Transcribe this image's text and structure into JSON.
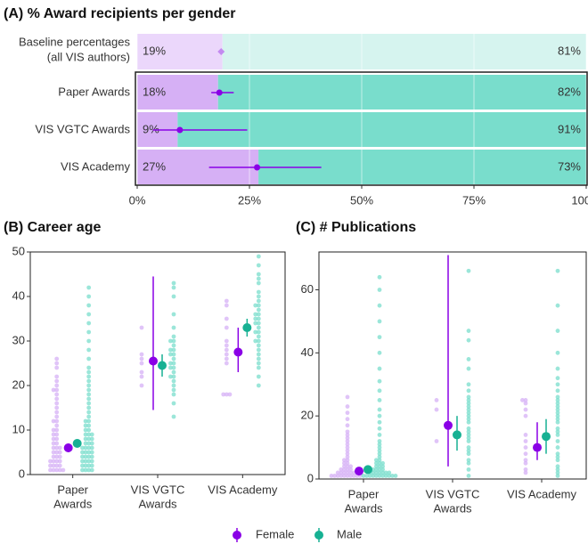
{
  "chart_data": [
    {
      "type": "stacked_bar_h",
      "title": "(A) % Award recipients per gender",
      "baseline": {
        "label": [
          "Baseline percentages",
          "(all VIS authors)"
        ],
        "values": [
          19,
          81
        ],
        "value_labels": [
          "19%",
          "81%"
        ],
        "mean": 18.7
      },
      "categories": [
        [
          "Paper Awards"
        ],
        [
          "VIS VGTC Awards"
        ],
        [
          "VIS Academy"
        ]
      ],
      "series": [
        {
          "values": [
            18,
            9,
            27
          ],
          "value_labels": [
            "18%",
            "9%",
            "27%"
          ],
          "mean": [
            18.3,
            9.5,
            26.7
          ],
          "ci_low": [
            16.5,
            3.5,
            16
          ],
          "ci_high": [
            21.5,
            24.5,
            41
          ]
        },
        {
          "values": [
            82,
            91,
            73
          ],
          "value_labels": [
            "82%",
            "91%",
            "73%"
          ]
        }
      ],
      "xlim": [
        0,
        100
      ],
      "xticks": [
        {
          "value": 0,
          "label": "0%"
        },
        {
          "value": 25,
          "label": "25%"
        },
        {
          "value": 50,
          "label": "50%"
        },
        {
          "value": 75,
          "label": "75%"
        },
        {
          "value": 100,
          "label": "100%"
        }
      ],
      "grid": true
    },
    {
      "type": "swarm",
      "title": "(B) Career age",
      "categories": [
        [
          "Paper",
          "Awards"
        ],
        [
          "VIS VGTC",
          "Awards"
        ],
        [
          "VIS Academy"
        ]
      ],
      "series": [
        {
          "points": [
            [
              1,
              1,
              1,
              1,
              1,
              2,
              2,
              2,
              2,
              3,
              3,
              3,
              3,
              4,
              4,
              4,
              5,
              5,
              5,
              6,
              6,
              6,
              7,
              7,
              8,
              8,
              9,
              9,
              10,
              10,
              11,
              12,
              12,
              13,
              14,
              15,
              16,
              17,
              18,
              19,
              19,
              20,
              21,
              22,
              24,
              25,
              26
            ],
            [
              23,
              22,
              25,
              33,
              26,
              27,
              20
            ],
            [
              39,
              38,
              35,
              33,
              30,
              29,
              28,
              27,
              26,
              25,
              18,
              18,
              18
            ]
          ],
          "mean": [
            6,
            25.5,
            27.5
          ],
          "ci_low": [
            5,
            14.5,
            23
          ],
          "ci_high": [
            7,
            44.5,
            33
          ]
        },
        {
          "points": [
            [
              1,
              1,
              1,
              1,
              2,
              2,
              2,
              2,
              3,
              3,
              3,
              3,
              4,
              4,
              4,
              4,
              5,
              5,
              5,
              5,
              6,
              6,
              6,
              6,
              7,
              7,
              7,
              8,
              8,
              8,
              9,
              9,
              9,
              10,
              10,
              11,
              11,
              12,
              12,
              13,
              14,
              15,
              16,
              17,
              18,
              19,
              20,
              21,
              22,
              23,
              24,
              26,
              28,
              30,
              32,
              34,
              36,
              38,
              40,
              42
            ],
            [
              13,
              16,
              18,
              19,
              20,
              21,
              22,
              22,
              23,
              24,
              24,
              25,
              25,
              26,
              27,
              27,
              28,
              28,
              29,
              30,
              30,
              31,
              33,
              36,
              40,
              42,
              43
            ],
            [
              20,
              22,
              24,
              25,
              26,
              27,
              28,
              29,
              30,
              30,
              31,
              32,
              32,
              33,
              34,
              34,
              35,
              35,
              36,
              36,
              37,
              38,
              38,
              39,
              40,
              41,
              43,
              44,
              45,
              47,
              49
            ]
          ],
          "mean": [
            7,
            24.5,
            33
          ],
          "ci_low": [
            6.5,
            22,
            31
          ],
          "ci_high": [
            7.5,
            27,
            35
          ]
        }
      ],
      "ylim": [
        0,
        50
      ],
      "yticks": [
        0,
        10,
        20,
        30,
        40,
        50
      ]
    },
    {
      "type": "swarm",
      "title": "(C) # Publications",
      "categories": [
        [
          "Paper",
          "Awards"
        ],
        [
          "VIS VGTC",
          "Awards"
        ],
        [
          "VIS Academy"
        ]
      ],
      "series": [
        {
          "points": [
            [
              1,
              1,
              1,
              1,
              1,
              1,
              1,
              1,
              1,
              1,
              2,
              2,
              2,
              2,
              2,
              2,
              3,
              3,
              3,
              3,
              4,
              4,
              4,
              5,
              5,
              6,
              6,
              7,
              8,
              9,
              10,
              11,
              12,
              13,
              14,
              15,
              17,
              19,
              21,
              23,
              26
            ],
            [
              22,
              25,
              12
            ],
            [
              2,
              3,
              5,
              6,
              8,
              10,
              12,
              14,
              20,
              22,
              24,
              25,
              25
            ]
          ],
          "mean": [
            2.5,
            17,
            10
          ],
          "ci_low": [
            2,
            4,
            6
          ],
          "ci_high": [
            3,
            71,
            18
          ]
        },
        {
          "points": [
            [
              1,
              1,
              1,
              1,
              1,
              1,
              1,
              1,
              1,
              1,
              1,
              2,
              2,
              2,
              2,
              2,
              2,
              2,
              3,
              3,
              3,
              3,
              4,
              4,
              4,
              5,
              5,
              5,
              6,
              6,
              7,
              8,
              9,
              10,
              11,
              12,
              14,
              16,
              18,
              20,
              22,
              25,
              28,
              31,
              35,
              40,
              45,
              50,
              55,
              60,
              64
            ],
            [
              1,
              3,
              5,
              6,
              8,
              9,
              10,
              12,
              13,
              14,
              15,
              16,
              18,
              19,
              20,
              21,
              22,
              23,
              24,
              25,
              26,
              28,
              30,
              35,
              38,
              44,
              47,
              66
            ],
            [
              1,
              2,
              3,
              4,
              6,
              7,
              8,
              10,
              12,
              14,
              15,
              16,
              18,
              19,
              20,
              21,
              22,
              23,
              24,
              25,
              26,
              28,
              30,
              32,
              35,
              40,
              47,
              55,
              66
            ]
          ],
          "mean": [
            3,
            14,
            13.5
          ],
          "ci_low": [
            2.5,
            9,
            8
          ],
          "ci_high": [
            3.5,
            20,
            19
          ]
        }
      ],
      "ylim": [
        0,
        72
      ],
      "yticks": [
        0,
        20,
        40,
        60
      ]
    }
  ],
  "legend": [
    {
      "name": "Female",
      "color": "#8a00e6",
      "light": "#d6b0f5",
      "pale": "#ebd7fb"
    },
    {
      "name": "Male",
      "color": "#17b193",
      "light": "#79ddcc",
      "pale": "#d6f4ef"
    }
  ]
}
